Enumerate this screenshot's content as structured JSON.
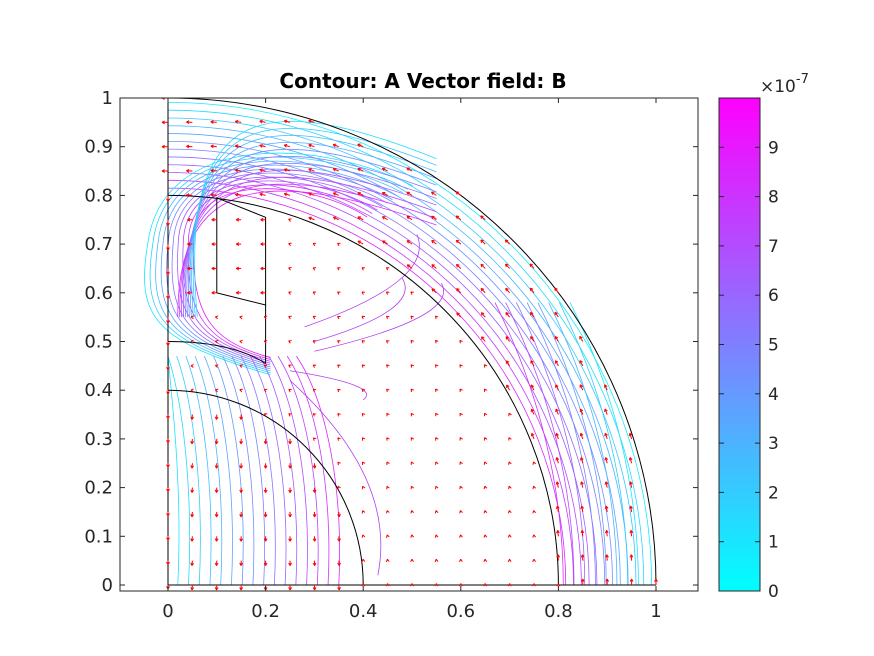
{
  "chart_data": {
    "type": "contour",
    "title": "Contour: A  Vector field: B",
    "xlim": [
      -0.1,
      1.08
    ],
    "ylim": [
      -0.01,
      1.0
    ],
    "x_ticks": [
      "0",
      "0.2",
      "0.4",
      "0.6",
      "0.8",
      "1"
    ],
    "x_tick_values": [
      0,
      0.2,
      0.4,
      0.6,
      0.8,
      1
    ],
    "y_ticks": [
      "0",
      "0.1",
      "0.2",
      "0.3",
      "0.4",
      "0.5",
      "0.6",
      "0.7",
      "0.8",
      "0.9",
      "1"
    ],
    "y_tick_values": [
      0,
      0.1,
      0.2,
      0.3,
      0.4,
      0.5,
      0.6,
      0.7,
      0.8,
      0.9,
      1
    ],
    "colorbar": {
      "range": [
        0,
        1.0
      ],
      "ticks": [
        "0",
        "1",
        "2",
        "3",
        "4",
        "5",
        "6",
        "7",
        "8",
        "9"
      ],
      "tick_values": [
        0,
        1,
        2,
        3,
        4,
        5,
        6,
        7,
        8,
        9
      ],
      "exponent_base": "×10",
      "exponent": "-7",
      "colormap": [
        "#00ffff",
        "#ff00ff"
      ]
    },
    "geometry": {
      "outer_radius": 1.0,
      "inner_radius": 0.8,
      "core_radius": 0.4,
      "center_box_top": 0.5,
      "magnet_box": {
        "x0": 0.1,
        "x1": 0.2,
        "y0": 0.6,
        "y1": 0.8
      }
    },
    "contour_color": "#b040f0",
    "vector_color": "#ff0000",
    "frame_color": "#000000"
  }
}
